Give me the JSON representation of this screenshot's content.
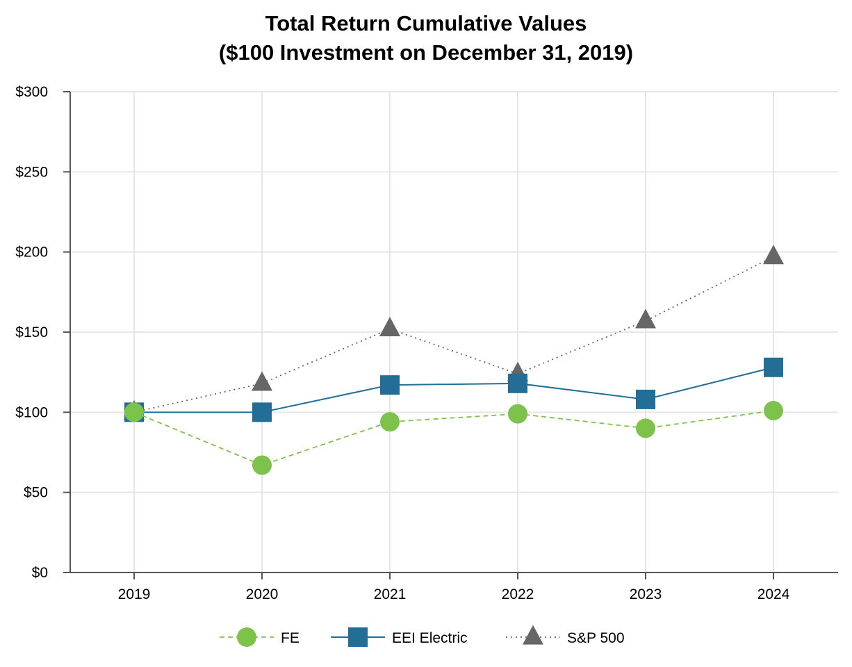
{
  "chart_data": {
    "type": "line",
    "title": "Total Return Cumulative Values",
    "subtitle": "($100 Investment on December 31, 2019)",
    "xlabel": "",
    "ylabel": "",
    "categories": [
      "2019",
      "2020",
      "2021",
      "2022",
      "2023",
      "2024"
    ],
    "ylim": [
      0,
      300
    ],
    "yticks": [
      0,
      50,
      100,
      150,
      200,
      250,
      300
    ],
    "ytick_labels": [
      "$0",
      "$50",
      "$100",
      "$150",
      "$200",
      "$250",
      "$300"
    ],
    "grid": true,
    "legend_position": "bottom",
    "series": [
      {
        "name": "FE",
        "values": [
          100,
          67,
          94,
          99,
          90,
          101
        ],
        "color": "#7dc24b",
        "marker": "circle",
        "line_style": "dashed"
      },
      {
        "name": "EEI Electric",
        "values": [
          100,
          100,
          117,
          118,
          108,
          128
        ],
        "color": "#236e96",
        "marker": "square",
        "line_style": "solid"
      },
      {
        "name": "S&P 500",
        "values": [
          100,
          118,
          152,
          124,
          157,
          197
        ],
        "color": "#666666",
        "marker": "triangle",
        "line_style": "dotted"
      }
    ]
  }
}
